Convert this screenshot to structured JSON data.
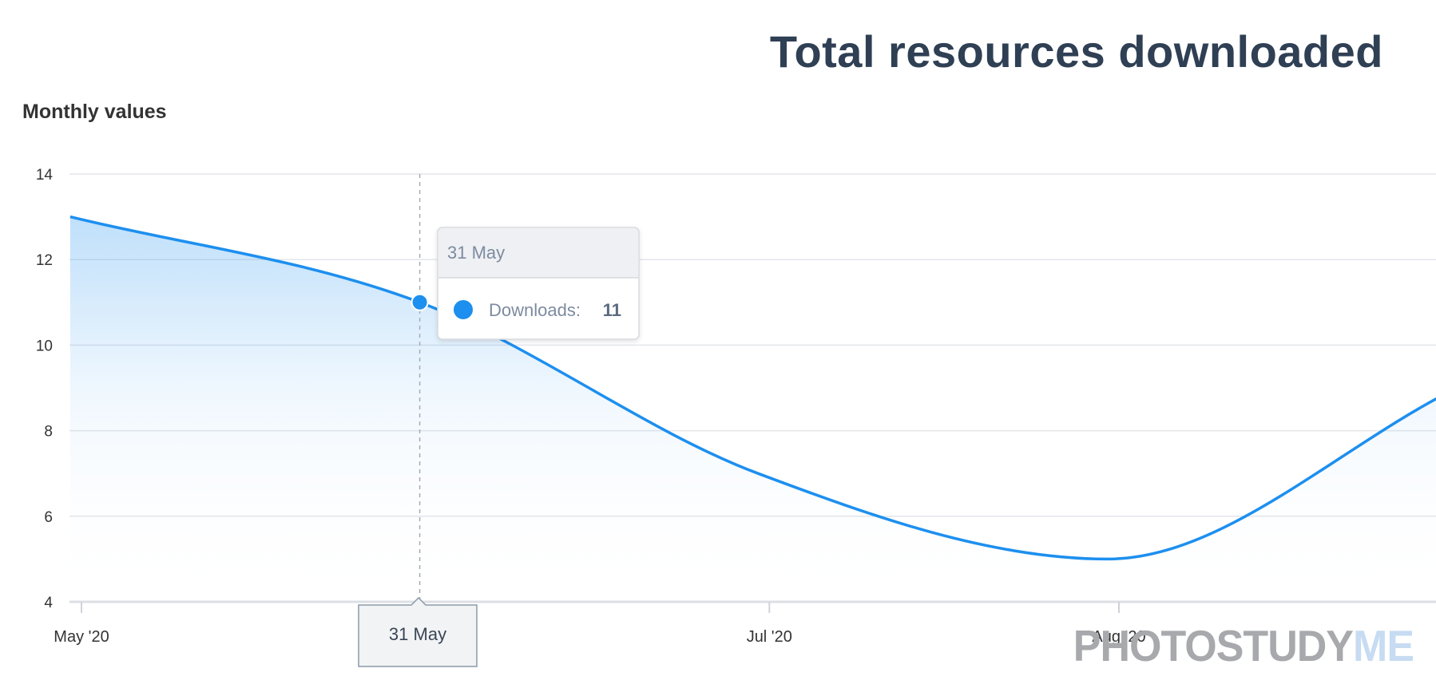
{
  "title": "Total resources downloaded",
  "watermark": {
    "part1": "PHOTOSTUDY",
    "part2": "ME"
  },
  "tooltip": {
    "date": "31 May",
    "series_label": "Downloads:",
    "value": "11"
  },
  "crosshair_label": "31 May",
  "colors": {
    "line": "#1d8fef",
    "title": "#2f3f54",
    "grid": "#e4e6ea"
  },
  "chart_data": {
    "type": "area",
    "title": "Total resources downloaded",
    "ylabel": "Monthly values",
    "xlabel": "",
    "ylim": [
      4,
      14
    ],
    "yticks": [
      "14",
      "12",
      "10",
      "8",
      "6",
      "4"
    ],
    "xticks": [
      {
        "label": "May '20",
        "date": "2020-05-01"
      },
      {
        "label": "Jul '20",
        "date": "2020-07-01"
      },
      {
        "label": "Aug '20",
        "date": "2020-08-01"
      }
    ],
    "grid": true,
    "legend": "none",
    "series": [
      {
        "values": [
          {
            "x": "2020-04-30",
            "y": 13
          },
          {
            "x": "2020-05-31",
            "y": 11
          },
          {
            "x": "2020-06-30",
            "y": 7
          },
          {
            "x": "2020-07-31",
            "y": 5
          },
          {
            "x": "2020-08-31",
            "y": 9
          }
        ]
      }
    ],
    "highlight": {
      "x": "2020-05-31",
      "y": 11
    }
  }
}
